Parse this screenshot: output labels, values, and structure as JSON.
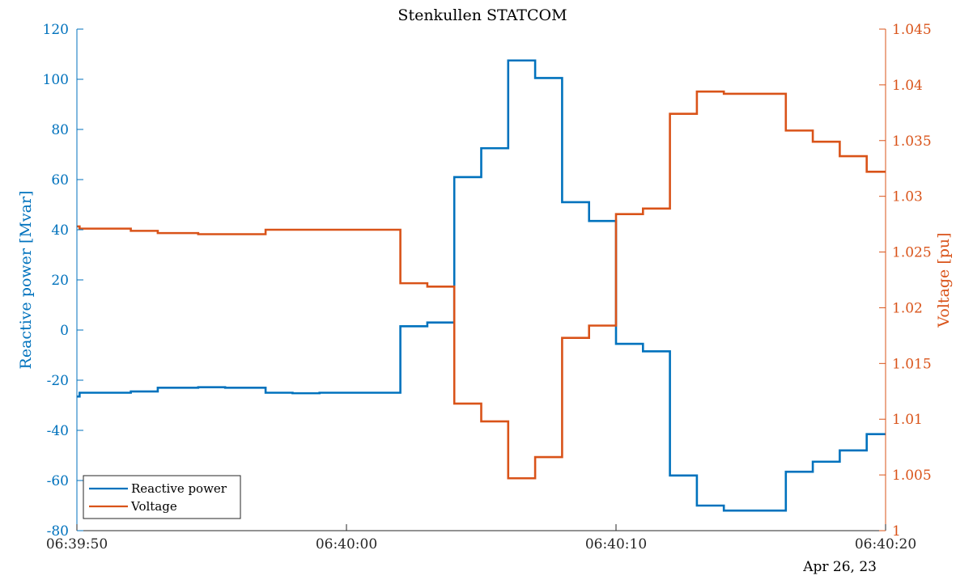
{
  "chart_data": {
    "type": "line",
    "title": "Stenkullen STATCOM",
    "date_label": "Apr 26, 23",
    "x_unit": "seconds after 06:39:50",
    "xlim": [
      0,
      30
    ],
    "x_ticks": [
      0,
      10,
      20,
      30
    ],
    "x_tick_labels": [
      "06:39:50",
      "06:40:00",
      "06:40:10",
      "06:40:20"
    ],
    "y_left": {
      "label": "Reactive power [Mvar]",
      "lim": [
        -80,
        120
      ],
      "ticks": [
        -80,
        -60,
        -40,
        -20,
        0,
        20,
        40,
        60,
        80,
        100,
        120
      ],
      "tick_labels": [
        "-80",
        "-60",
        "-40",
        "-20",
        "0",
        "20",
        "40",
        "60",
        "80",
        "100",
        "120"
      ],
      "color": "#0072BD"
    },
    "y_right": {
      "label": "Voltage [pu]",
      "lim": [
        1.0,
        1.045
      ],
      "ticks": [
        1.0,
        1.005,
        1.01,
        1.015,
        1.02,
        1.025,
        1.03,
        1.035,
        1.04,
        1.045
      ],
      "tick_labels": [
        "1",
        "1.005",
        "1.01",
        "1.015",
        "1.02",
        "1.025",
        "1.03",
        "1.035",
        "1.04",
        "1.045"
      ],
      "color": "#D95319"
    },
    "legend": {
      "position": "bottom-left",
      "entries": [
        "Reactive power",
        "Voltage"
      ]
    },
    "grid": false,
    "series": [
      {
        "name": "Reactive power",
        "axis": "left",
        "color": "#0072BD",
        "x": [
          0,
          0.1,
          0.1,
          2.0,
          2.0,
          3.0,
          3.0,
          4.5,
          4.5,
          5.5,
          5.5,
          7.0,
          7.0,
          8.0,
          8.0,
          9.0,
          9.0,
          12.0,
          12.0,
          13.0,
          13.0,
          14.0,
          14.0,
          15.0,
          15.0,
          16.0,
          16.0,
          17.0,
          17.0,
          18.0,
          18.0,
          19.0,
          19.0,
          20.0,
          20.0,
          21.0,
          21.0,
          22.0,
          22.0,
          23.0,
          23.0,
          24.0,
          24.0,
          26.3,
          26.3,
          27.3,
          27.3,
          28.3,
          28.3,
          29.3,
          29.3,
          30.0
        ],
        "y": [
          -26.5,
          -26.5,
          -25.0,
          -25.0,
          -24.5,
          -24.5,
          -23.0,
          -23.0,
          -22.8,
          -22.8,
          -23.0,
          -23.0,
          -25.0,
          -25.0,
          -25.2,
          -25.2,
          -25.0,
          -25.0,
          1.5,
          1.5,
          3.0,
          3.0,
          61.0,
          61.0,
          72.5,
          72.5,
          107.5,
          107.5,
          100.5,
          100.5,
          51.0,
          51.0,
          43.5,
          43.5,
          -5.5,
          -5.5,
          -8.5,
          -8.5,
          -58.0,
          -58.0,
          -70.0,
          -70.0,
          -72.0,
          -72.0,
          -56.5,
          -56.5,
          -52.5,
          -52.5,
          -48.0,
          -48.0,
          -41.5,
          -41.5
        ]
      },
      {
        "name": "Voltage",
        "axis": "right",
        "color": "#D95319",
        "x": [
          0,
          0.1,
          0.1,
          2.0,
          2.0,
          3.0,
          3.0,
          4.5,
          4.5,
          5.5,
          5.5,
          7.0,
          7.0,
          8.0,
          8.0,
          9.0,
          9.0,
          12.0,
          12.0,
          13.0,
          13.0,
          14.0,
          14.0,
          15.0,
          15.0,
          16.0,
          16.0,
          17.0,
          17.0,
          18.0,
          18.0,
          19.0,
          19.0,
          20.0,
          20.0,
          21.0,
          21.0,
          22.0,
          22.0,
          23.0,
          23.0,
          24.0,
          24.0,
          26.3,
          26.3,
          27.3,
          27.3,
          28.3,
          28.3,
          29.3,
          29.3,
          30.0
        ],
        "y": [
          1.0273,
          1.0273,
          1.0271,
          1.0271,
          1.0269,
          1.0269,
          1.0267,
          1.0267,
          1.0266,
          1.0266,
          1.0266,
          1.0266,
          1.027,
          1.027,
          1.027,
          1.027,
          1.027,
          1.027,
          1.0222,
          1.0222,
          1.0219,
          1.0219,
          1.0114,
          1.0114,
          1.0098,
          1.0098,
          1.0047,
          1.0047,
          1.0066,
          1.0066,
          1.0173,
          1.0173,
          1.0184,
          1.0184,
          1.0284,
          1.0284,
          1.0289,
          1.0289,
          1.0374,
          1.0374,
          1.0394,
          1.0394,
          1.0392,
          1.0392,
          1.0359,
          1.0359,
          1.0349,
          1.0349,
          1.0336,
          1.0336,
          1.0322,
          1.0322
        ]
      }
    ]
  }
}
